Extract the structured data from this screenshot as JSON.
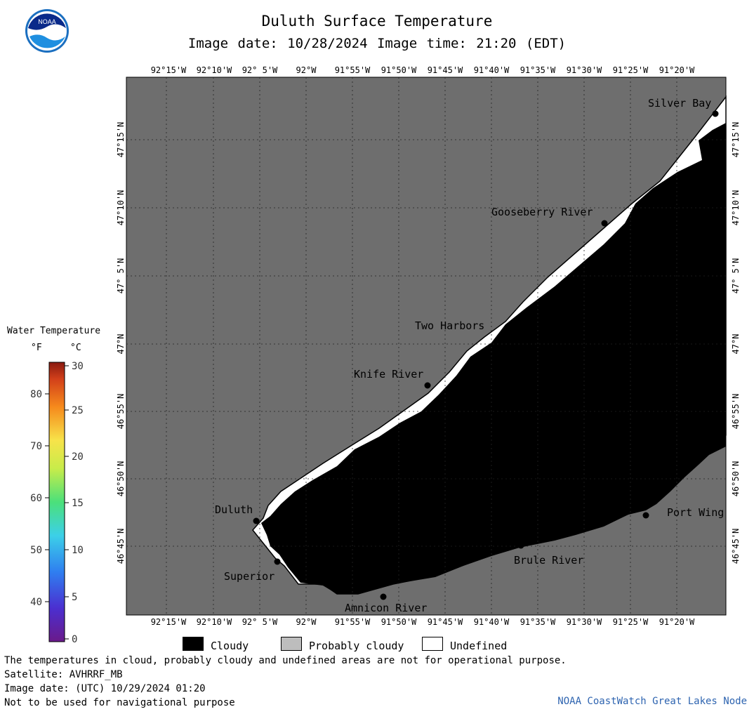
{
  "title": "Duluth Surface Temperature",
  "subtitle": "Image date: 10/28/2024    Image time: 21:20 (EDT)",
  "logo_text": "NOAA",
  "longitude_labels": [
    "92°15'W",
    "92°10'W",
    "92° 5'W",
    "92°W",
    "91°55'W",
    "91°50'W",
    "91°45'W",
    "91°40'W",
    "91°35'W",
    "91°30'W",
    "91°25'W",
    "91°20'W"
  ],
  "latitude_labels": [
    "47°15'N",
    "47°10'N",
    "47° 5'N",
    "47°N",
    "46°55'N",
    "46°50'N",
    "46°45'N"
  ],
  "places": [
    {
      "name": "Silver Bay"
    },
    {
      "name": "Gooseberry River"
    },
    {
      "name": "Two Harbors"
    },
    {
      "name": "Knife River"
    },
    {
      "name": "Duluth"
    },
    {
      "name": "Superior"
    },
    {
      "name": "Amnicon River"
    },
    {
      "name": "Brule River"
    },
    {
      "name": "Port Wing"
    }
  ],
  "legend": {
    "title": "Water Temperature",
    "unit_f": "°F",
    "unit_c": "°C",
    "f_ticks": [
      "80",
      "70",
      "60",
      "50",
      "40"
    ],
    "c_ticks": [
      "30",
      "25",
      "20",
      "15",
      "10",
      "5",
      "0"
    ]
  },
  "key": {
    "cloudy": "Cloudy",
    "probably_cloudy": "Probably cloudy",
    "undefined": "Undefined"
  },
  "notes": {
    "line1": "The temperatures in cloud, probably cloudy and undefined areas are not for operational purpose.",
    "line2": "Satellite: AVHRRF_MB",
    "line3": "Image date: (UTC) 10/29/2024  01:20",
    "line4": "Not to be used for navigational purpose"
  },
  "credit": "NOAA CoastWatch Great Lakes Node",
  "colors": {
    "land": "#6e6e6e",
    "cloudy": "#000000",
    "probably_cloudy": "#bdbdbd",
    "undefined": "#ffffff",
    "credit": "#2e64b0"
  }
}
